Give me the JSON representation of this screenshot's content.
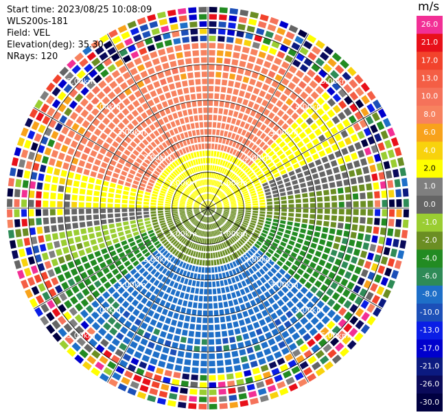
{
  "header": {
    "start_time": "Start time: 2023/08/25 10:08:09",
    "instrument": "WLS200s-181",
    "field": "Field: VEL",
    "elevation": "Elevation(deg): 35.30",
    "nrays": "NRays: 120"
  },
  "colorbar": {
    "unit": "m/s",
    "levels": [
      {
        "label": "26.0",
        "color": "#f22f95",
        "text": "#ffffff"
      },
      {
        "label": "21.0",
        "color": "#e8101a",
        "text": "#ffffff"
      },
      {
        "label": "17.0",
        "color": "#f2432c",
        "text": "#ffffff"
      },
      {
        "label": "13.0",
        "color": "#f45e45",
        "text": "#ffffff"
      },
      {
        "label": "10.0",
        "color": "#f5725a",
        "text": "#ffffff"
      },
      {
        "label": "8.0",
        "color": "#f7825f",
        "text": "#ffffff"
      },
      {
        "label": "6.0",
        "color": "#f8a21b",
        "text": "#ffffff"
      },
      {
        "label": "4.0",
        "color": "#f8d20c",
        "text": "#ffffff"
      },
      {
        "label": "2.0",
        "color": "#ffff00",
        "text": "#000000"
      },
      {
        "label": "1.0",
        "color": "#7f7f7f",
        "text": "#ffffff"
      },
      {
        "label": "0.0",
        "color": "#656565",
        "text": "#ffffff"
      },
      {
        "label": "-1.0",
        "color": "#9acd32",
        "text": "#ffffff"
      },
      {
        "label": "-2.0",
        "color": "#6b8e23",
        "text": "#ffffff"
      },
      {
        "label": "-4.0",
        "color": "#228b22",
        "text": "#ffffff"
      },
      {
        "label": "-6.0",
        "color": "#2e8b57",
        "text": "#ffffff"
      },
      {
        "label": "-8.0",
        "color": "#1e6fc8",
        "text": "#ffffff"
      },
      {
        "label": "-10.0",
        "color": "#1c4fb8",
        "text": "#ffffff"
      },
      {
        "label": "-13.0",
        "color": "#0a1ee6",
        "text": "#ffffff"
      },
      {
        "label": "-17.0",
        "color": "#0000cd",
        "text": "#ffffff"
      },
      {
        "label": "-21.0",
        "color": "#0b1a80",
        "text": "#ffffff"
      },
      {
        "label": "-26.0",
        "color": "#0a0a5a",
        "text": "#ffffff"
      },
      {
        "label": "-30.0",
        "color": "#000040",
        "text": "#ffffff"
      }
    ]
  },
  "chart_data": {
    "type": "heatmap",
    "subtype": "polar-ppi",
    "title": "",
    "field": "VEL",
    "unit": "m/s",
    "nrays": 120,
    "elevation_deg": 35.3,
    "range_rings_km": [
      1.0,
      2.0,
      3.0,
      4.0,
      5.0
    ],
    "ring_labels": [
      "1.00km",
      "2.00km",
      "3.00km",
      "4.00km",
      "5.00km"
    ],
    "max_range_km": 5.6,
    "spokes_deg": [
      0,
      30,
      60,
      90,
      120,
      150,
      180,
      210,
      240,
      270,
      300,
      330
    ],
    "noisy_beyond_km": 4.6,
    "azimuth_sectors": [
      {
        "az_from": 0,
        "az_to": 45,
        "vel": 8.0
      },
      {
        "az_from": 45,
        "az_to": 65,
        "vel": 2.0
      },
      {
        "az_from": 65,
        "az_to": 80,
        "vel": 0.0
      },
      {
        "az_from": 80,
        "az_to": 100,
        "vel": -2.0
      },
      {
        "az_from": 100,
        "az_to": 130,
        "vel": -4.0
      },
      {
        "az_from": 130,
        "az_to": 230,
        "vel": -8.0
      },
      {
        "az_from": 230,
        "az_to": 250,
        "vel": -4.0
      },
      {
        "az_from": 250,
        "az_to": 262,
        "vel": -1.0
      },
      {
        "az_from": 262,
        "az_to": 270,
        "vel": 0.0
      },
      {
        "az_from": 270,
        "az_to": 285,
        "vel": 2.0
      },
      {
        "az_from": 285,
        "az_to": 360,
        "vel": 8.0
      }
    ],
    "near_range_band": {
      "range_km_to": 1.6,
      "vel_north": 2.0,
      "vel_south": -2.0
    }
  }
}
